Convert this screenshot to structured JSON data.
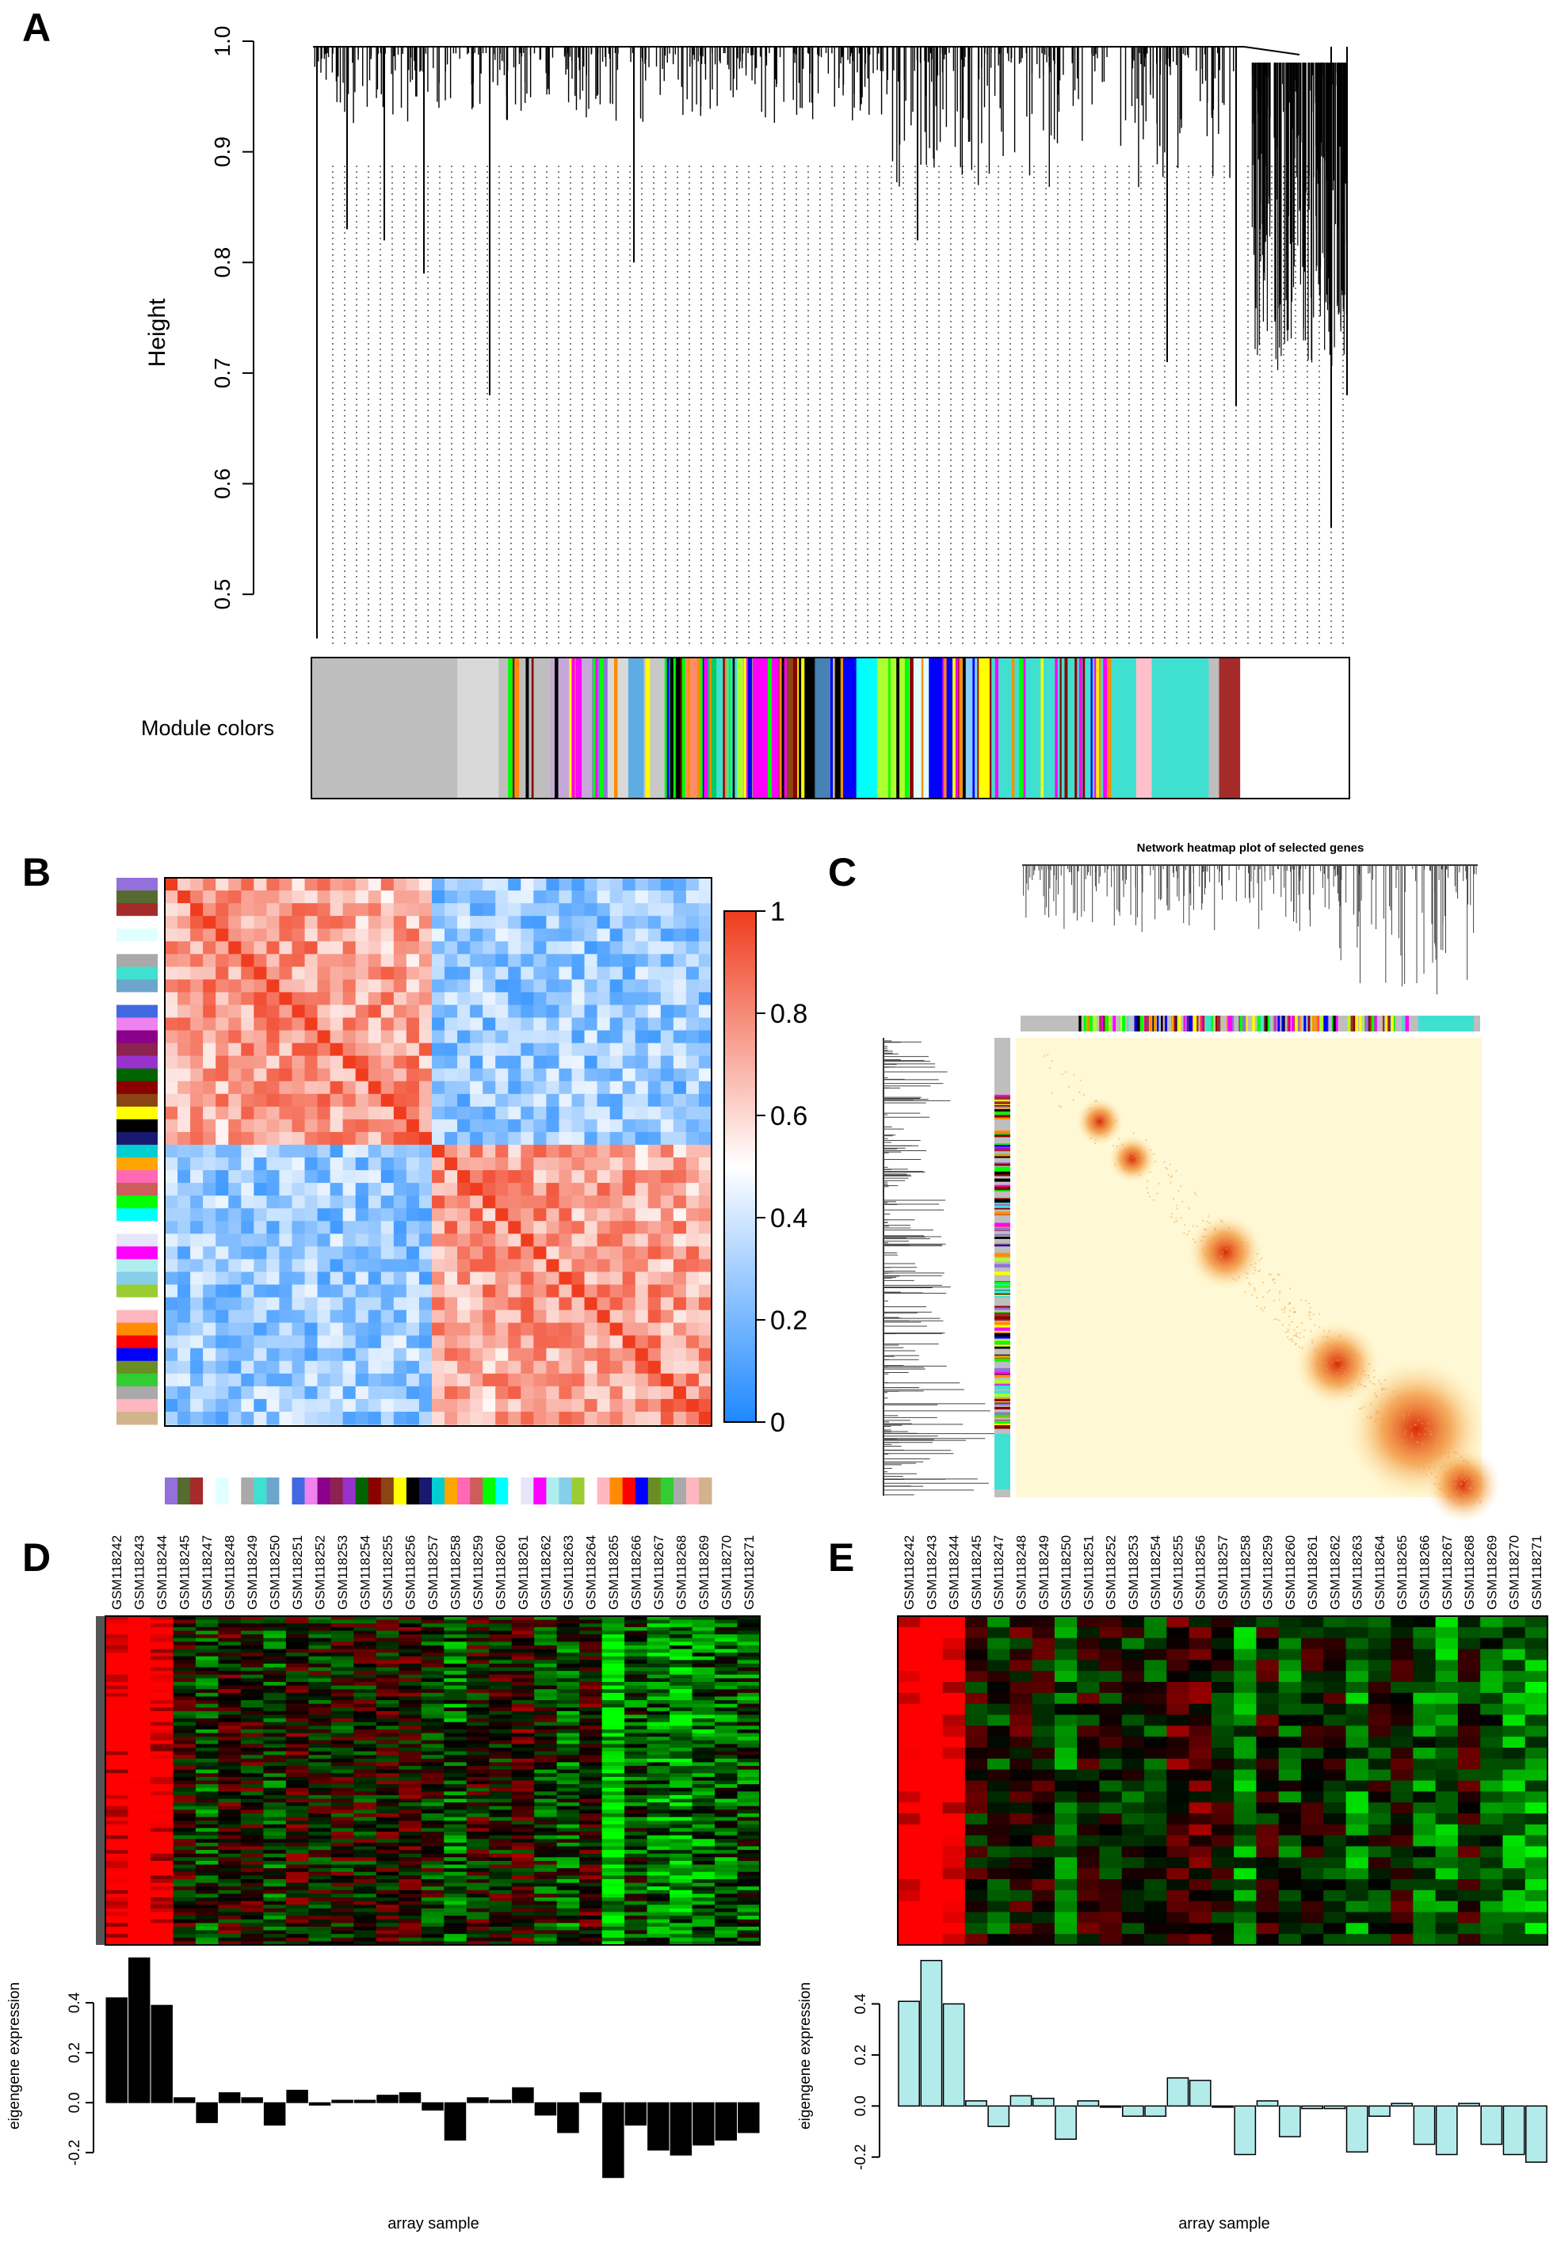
{
  "panels": {
    "A": {
      "letter": "A",
      "ylabel": "Height",
      "yticks": [
        "0.5",
        "0.6",
        "0.7",
        "0.8",
        "0.9",
        "1.0"
      ],
      "module_label": "Module colors"
    },
    "B": {
      "letter": "B",
      "colorbar_ticks": [
        "0",
        "0.2",
        "0.4",
        "0.6",
        "0.8",
        "1"
      ]
    },
    "C": {
      "letter": "C",
      "title": "Network heatmap plot of selected genes"
    },
    "D": {
      "letter": "D",
      "ylabel": "eigengene expression",
      "xlabel": "array sample",
      "yticks": [
        "-0.2",
        "0.0",
        "0.2",
        "0.4"
      ],
      "bar_color": "#000000"
    },
    "E": {
      "letter": "E",
      "ylabel": "eigengene expression",
      "xlabel": "array sample",
      "yticks": [
        "-0.2",
        "0.0",
        "0.2",
        "0.4"
      ],
      "bar_color": "#b3ebeb"
    }
  },
  "chart_data": [
    {
      "panel": "A",
      "type": "dendrogram",
      "ylabel": "Height",
      "ylim": [
        0.45,
        1.0
      ],
      "yticks": [
        0.5,
        0.6,
        0.7,
        0.8,
        0.9,
        1.0
      ],
      "module_colors_label": "Module colors",
      "module_color_blocks": [
        {
          "color": "#bebebe",
          "frac": 0.14
        },
        {
          "color": "#d9d9d9",
          "frac": 0.04
        },
        {
          "color": "#bebebe",
          "frac": 0.05
        },
        {
          "color": "#c7a7d9",
          "frac": 0.04
        },
        {
          "color": "#9370db",
          "frac": 0.015
        },
        {
          "color": "#d9d9d9",
          "frac": 0.02
        },
        {
          "color": "#5dade2",
          "frac": 0.015
        },
        {
          "color": "#c8c8c8",
          "frac": 0.02
        },
        {
          "color": "#00ff00",
          "frac": 0.02
        },
        {
          "color": "#ff8c69",
          "frac": 0.015
        },
        {
          "color": "#00cc66",
          "frac": 0.015
        },
        {
          "color": "#40e0d0",
          "frac": 0.02
        },
        {
          "color": "#adff2f",
          "frac": 0.015
        },
        {
          "color": "#ff00ff",
          "frac": 0.025
        },
        {
          "color": "#8b4513",
          "frac": 0.015
        },
        {
          "color": "#ffff00",
          "frac": 0.01
        },
        {
          "color": "#000000",
          "frac": 0.01
        },
        {
          "color": "#4682b4",
          "frac": 0.015
        },
        {
          "color": "#0000ff",
          "frac": 0.025
        },
        {
          "color": "#00ffff",
          "frac": 0.02
        },
        {
          "color": "#adff2f",
          "frac": 0.03
        },
        {
          "color": "#e0ffff",
          "frac": 0.02
        },
        {
          "color": "#0000ff",
          "frac": 0.03
        },
        {
          "color": "#87cefa",
          "frac": 0.02
        },
        {
          "color": "#ffff00",
          "frac": 0.01
        },
        {
          "color": "#40e0d0",
          "frac": 0.14
        },
        {
          "color": "#ffc0cb",
          "frac": 0.015
        },
        {
          "color": "#40e0d0",
          "frac": 0.055
        },
        {
          "color": "#bebebe",
          "frac": 0.01
        },
        {
          "color": "#a52a2a",
          "frac": 0.02
        }
      ]
    },
    {
      "panel": "B",
      "type": "heatmap",
      "description_none": "",
      "colorbar": {
        "min": 0,
        "max": 1,
        "ticks": [
          0,
          0.2,
          0.4,
          0.6,
          0.8,
          1
        ]
      },
      "module_colors": [
        "#9370db",
        "#556b2f",
        "#a52a2a",
        "#ffffff",
        "#e0ffff",
        "#ffffff",
        "#a9a9a9",
        "#40e0d0",
        "#6ca6cd",
        "#ffffff",
        "#4169e1",
        "#ee82ee",
        "#8b008b",
        "#8b2252",
        "#9932cc",
        "#006400",
        "#8b0000",
        "#8b4513",
        "#ffff00",
        "#000000",
        "#191970",
        "#00ced1",
        "#ffa500",
        "#ff69b4",
        "#cd5c5c",
        "#00ff00",
        "#00ffff",
        "#ffffff",
        "#e6e6fa",
        "#ff00ff",
        "#afeeee",
        "#87ceeb",
        "#9acd32",
        "#ffffff",
        "#ffb6c1",
        "#ff8c00",
        "#ff0000",
        "#0000ff",
        "#6b8e23",
        "#32cd32",
        "#a9a9a9",
        "#ffb6c1",
        "#d2b48c"
      ]
    },
    {
      "panel": "C",
      "type": "heatmap",
      "title": "Network heatmap plot of selected genes"
    },
    {
      "panel": "D",
      "type": "bar",
      "categories": [
        "GSM118242",
        "GSM118243",
        "GSM118244",
        "GSM118245",
        "GSM118247",
        "GSM118248",
        "GSM118249",
        "GSM118250",
        "GSM118251",
        "GSM118252",
        "GSM118253",
        "GSM118254",
        "GSM118255",
        "GSM118256",
        "GSM118257",
        "GSM118258",
        "GSM118259",
        "GSM118260",
        "GSM118261",
        "GSM118262",
        "GSM118263",
        "GSM118264",
        "GSM118265",
        "GSM118266",
        "GSM118267",
        "GSM118268",
        "GSM118269",
        "GSM118270",
        "GSM118271"
      ],
      "values": [
        0.42,
        0.58,
        0.39,
        0.02,
        -0.08,
        0.04,
        0.02,
        -0.09,
        0.05,
        -0.01,
        0.01,
        0.01,
        0.03,
        0.04,
        -0.03,
        -0.15,
        0.02,
        0.01,
        0.06,
        -0.05,
        -0.12,
        0.04,
        -0.3,
        -0.09,
        -0.19,
        -0.21,
        -0.17,
        -0.15,
        -0.12
      ],
      "ylabel": "eigengene expression",
      "xlabel": "array sample",
      "ylim": [
        -0.32,
        0.6
      ],
      "yticks": [
        -0.2,
        0.0,
        0.2,
        0.4
      ]
    },
    {
      "panel": "E",
      "type": "bar",
      "categories": [
        "GSM118242",
        "GSM118243",
        "GSM118244",
        "GSM118245",
        "GSM118247",
        "GSM118248",
        "GSM118249",
        "GSM118250",
        "GSM118251",
        "GSM118252",
        "GSM118253",
        "GSM118254",
        "GSM118255",
        "GSM118256",
        "GSM118257",
        "GSM118258",
        "GSM118259",
        "GSM118260",
        "GSM118261",
        "GSM118262",
        "GSM118263",
        "GSM118264",
        "GSM118265",
        "GSM118266",
        "GSM118267",
        "GSM118268",
        "GSM118269",
        "GSM118270",
        "GSM118271"
      ],
      "values": [
        0.41,
        0.57,
        0.4,
        0.02,
        -0.08,
        0.04,
        0.03,
        -0.13,
        0.02,
        0.0,
        -0.04,
        -0.04,
        0.11,
        0.1,
        0.0,
        -0.19,
        0.02,
        -0.12,
        -0.01,
        -0.01,
        -0.18,
        -0.04,
        0.01,
        -0.15,
        -0.19,
        0.01,
        -0.15,
        -0.19,
        -0.22
      ],
      "ylabel": "eigengene expression",
      "xlabel": "array sample",
      "ylim": [
        -0.3,
        0.6
      ],
      "yticks": [
        -0.2,
        0.0,
        0.2,
        0.4
      ]
    }
  ]
}
